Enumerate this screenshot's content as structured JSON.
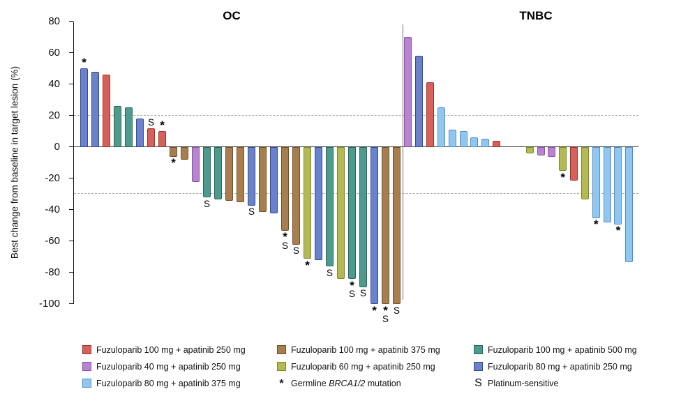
{
  "chart_data": {
    "type": "bar",
    "subtype": "waterfall",
    "title": "",
    "ylabel": "Best change from baseline in target lesion (%)",
    "xlabel": "",
    "ylim": [
      -100,
      80
    ],
    "yticks": [
      80,
      60,
      40,
      20,
      0,
      -20,
      -40,
      -60,
      -80,
      -100
    ],
    "reference_lines_y": [
      20,
      -30
    ],
    "grid": "dashed-horizontal-reference-only",
    "legend_position": "bottom",
    "mark_meanings": {
      "*": "Germline BRCA1/2 mutation",
      "S": "Platinum-sensitive"
    },
    "arms": {
      "rd": {
        "label": "Fuzuloparib 100 mg + apatinib 250 mg",
        "fill": "#D4625A",
        "border": "#A23229"
      },
      "br": {
        "label": "Fuzuloparib 100 mg + apatinib 375 mg",
        "fill": "#A87E50",
        "border": "#6F5026"
      },
      "tl": {
        "label": "Fuzuloparib 100 mg + apatinib 500 mg",
        "fill": "#4E9A8D",
        "border": "#25695C"
      },
      "pu": {
        "label": "Fuzuloparib 40 mg + apatinib 250 mg",
        "fill": "#B983CF",
        "border": "#8C4FAE"
      },
      "ol": {
        "label": "Fuzuloparib 60 mg + apatinib 250 mg",
        "fill": "#B4B955",
        "border": "#7E8823"
      },
      "pw": {
        "label": "Fuzuloparib 80 mg + apatinib 250 mg",
        "fill": "#6B81C9",
        "border": "#2F4C9F"
      },
      "lb": {
        "label": "Fuzuloparib 80 mg + apatinib 375 mg",
        "fill": "#93C6EE",
        "border": "#4A92D3"
      }
    },
    "panels": [
      {
        "title": "OC",
        "bars": [
          {
            "value": 50,
            "arm": "pw",
            "marks": [
              "*"
            ]
          },
          {
            "value": 48,
            "arm": "pw"
          },
          {
            "value": 46,
            "arm": "rd"
          },
          {
            "value": 26,
            "arm": "tl"
          },
          {
            "value": 25,
            "arm": "tl"
          },
          {
            "value": 18,
            "arm": "pw"
          },
          {
            "value": 12,
            "arm": "rd",
            "marks": [
              "S"
            ]
          },
          {
            "value": 10,
            "arm": "rd",
            "marks": [
              "*"
            ]
          },
          {
            "value": -6,
            "arm": "br",
            "marks": [
              "*"
            ]
          },
          {
            "value": -8,
            "arm": "br"
          },
          {
            "value": -22,
            "arm": "pu"
          },
          {
            "value": -32,
            "arm": "tl",
            "marks": [
              "S"
            ]
          },
          {
            "value": -33,
            "arm": "tl"
          },
          {
            "value": -34,
            "arm": "br"
          },
          {
            "value": -35,
            "arm": "br"
          },
          {
            "value": -37,
            "arm": "pw",
            "marks": [
              "S"
            ]
          },
          {
            "value": -41,
            "arm": "br"
          },
          {
            "value": -42,
            "arm": "pw"
          },
          {
            "value": -53,
            "arm": "br",
            "marks": [
              "*",
              "S"
            ]
          },
          {
            "value": -62,
            "arm": "br",
            "marks": [
              "S"
            ]
          },
          {
            "value": -71,
            "arm": "ol",
            "marks": [
              "*"
            ]
          },
          {
            "value": -72,
            "arm": "pw"
          },
          {
            "value": -76,
            "arm": "tl",
            "marks": [
              "S"
            ]
          },
          {
            "value": -84,
            "arm": "ol"
          },
          {
            "value": -84,
            "arm": "tl",
            "marks": [
              "*",
              "S"
            ]
          },
          {
            "value": -89,
            "arm": "tl",
            "marks": [
              "S"
            ]
          },
          {
            "value": -100,
            "arm": "pw",
            "marks": [
              "*"
            ]
          },
          {
            "value": -100,
            "arm": "br",
            "marks": [
              "*",
              "S"
            ]
          },
          {
            "value": -100,
            "arm": "br",
            "marks": [
              "S"
            ]
          }
        ]
      },
      {
        "title": "TNBC",
        "bars": [
          {
            "value": 70,
            "arm": "pu"
          },
          {
            "value": 58,
            "arm": "pw"
          },
          {
            "value": 41,
            "arm": "rd"
          },
          {
            "value": 25,
            "arm": "lb"
          },
          {
            "value": 11,
            "arm": "lb"
          },
          {
            "value": 10,
            "arm": "lb"
          },
          {
            "value": 6,
            "arm": "lb"
          },
          {
            "value": 5,
            "arm": "lb"
          },
          {
            "value": 4,
            "arm": "rd"
          },
          {
            "value": 0,
            "arm": null
          },
          {
            "value": 0,
            "arm": null
          },
          {
            "value": -4,
            "arm": "ol"
          },
          {
            "value": -5,
            "arm": "pu"
          },
          {
            "value": -6,
            "arm": "pu"
          },
          {
            "value": -15,
            "arm": "ol",
            "marks": [
              "*"
            ]
          },
          {
            "value": -21,
            "arm": "rd"
          },
          {
            "value": -33,
            "arm": "ol"
          },
          {
            "value": -45,
            "arm": "lb",
            "marks": [
              "*"
            ]
          },
          {
            "value": -48,
            "arm": "lb"
          },
          {
            "value": -49,
            "arm": "lb",
            "marks": [
              "*"
            ]
          },
          {
            "value": -73,
            "arm": "lb"
          }
        ]
      }
    ],
    "legend": {
      "columns": [
        [
          {
            "type": "swatch",
            "arm": "rd"
          },
          {
            "type": "swatch",
            "arm": "pu"
          },
          {
            "type": "swatch",
            "arm": "lb"
          }
        ],
        [
          {
            "type": "swatch",
            "arm": "br"
          },
          {
            "type": "swatch",
            "arm": "ol"
          },
          {
            "type": "symbol",
            "symbol": "*",
            "label_parts": [
              "Germline ",
              "BRCA1/2",
              " mutation"
            ]
          }
        ],
        [
          {
            "type": "swatch",
            "arm": "tl"
          },
          {
            "type": "swatch",
            "arm": "pw"
          },
          {
            "type": "symbol",
            "symbol": "S",
            "label_parts": [
              "Platinum-sensitive",
              "",
              ""
            ]
          }
        ]
      ]
    }
  }
}
